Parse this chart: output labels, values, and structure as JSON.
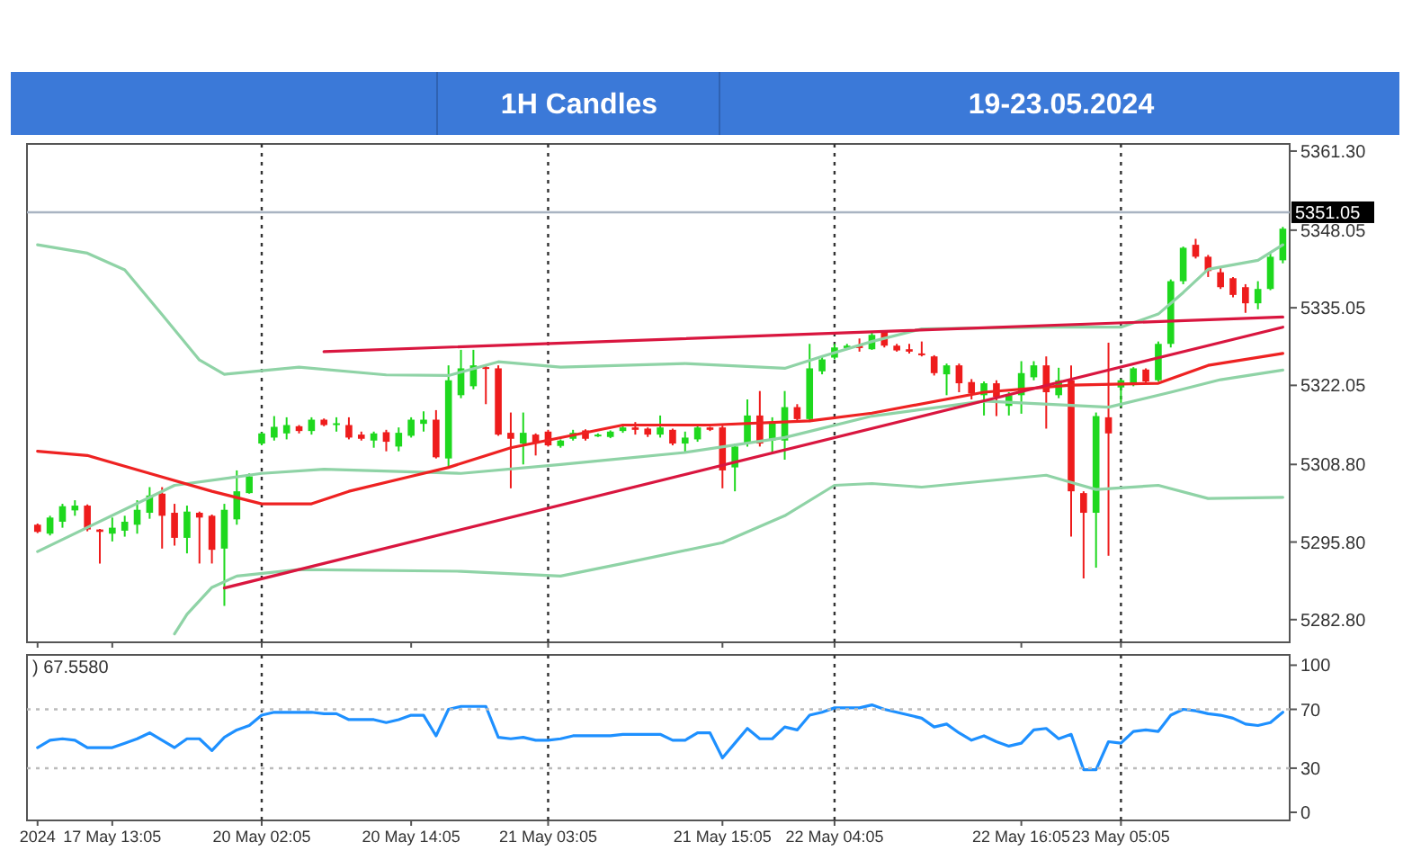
{
  "chart_data": [
    {
      "type": "candlestick",
      "title": "1H Candles",
      "subtitle": "19-23.05.2024",
      "tick_labels": "y",
      "ylim": [
        5279,
        5362.5
      ],
      "yticks": [
        {
          "value": 5282.8,
          "label": "5282.80"
        },
        {
          "value": 5295.8,
          "label": "5295.80"
        },
        {
          "value": 5308.8,
          "label": "5308.80"
        },
        {
          "value": 5322.05,
          "label": "5322.05"
        },
        {
          "value": 5335.05,
          "label": "5335.05"
        },
        {
          "value": 5348.05,
          "label": "5348.05"
        },
        {
          "value": 5361.3,
          "label": "5361.30"
        }
      ],
      "categories": [
        "2024",
        null,
        null,
        null,
        null,
        null,
        "17 May 13:05",
        null,
        null,
        null,
        null,
        null,
        null,
        null,
        null,
        null,
        null,
        null,
        "20 May 02:05",
        null,
        null,
        null,
        null,
        null,
        null,
        null,
        null,
        null,
        null,
        null,
        "20 May 14:05",
        null,
        null,
        null,
        null,
        null,
        null,
        null,
        null,
        null,
        null,
        "21 May 03:05",
        null,
        null,
        null,
        null,
        null,
        null,
        null,
        null,
        null,
        null,
        null,
        null,
        null,
        "21 May 15:05",
        null,
        null,
        null,
        null,
        null,
        null,
        null,
        null,
        "22 May 04:05",
        null,
        null,
        null,
        null,
        null,
        null,
        null,
        null,
        null,
        null,
        null,
        null,
        null,
        null,
        "22 May 16:05",
        null,
        null,
        null,
        null,
        null,
        null,
        null,
        "23 May 05:05",
        null,
        null,
        null,
        null,
        null,
        null,
        null,
        null,
        null,
        null,
        null,
        null,
        null
      ],
      "ohlc": [
        [
          5298.7,
          5298.9,
          5297.3,
          5297.5
        ],
        [
          5297.2,
          5300.2,
          5296.9,
          5299.9
        ],
        [
          5299.2,
          5302.2,
          5298.2,
          5301.8
        ],
        [
          5301.1,
          5302.8,
          5300.2,
          5301.9
        ],
        [
          5301.9,
          5302.1,
          5297.6,
          5297.9
        ],
        [
          5297.9,
          5298.0,
          5292.2,
          5297.5
        ],
        [
          5297.2,
          5299.9,
          5295.9,
          5298.2
        ],
        [
          5297.7,
          5300.2,
          5296.7,
          5299.2
        ],
        [
          5298.7,
          5302.8,
          5297.2,
          5301.2
        ],
        [
          5300.7,
          5305.0,
          5299.7,
          5303.6
        ],
        [
          5303.9,
          5305.0,
          5294.7,
          5300.2
        ],
        [
          5300.7,
          5302.2,
          5295.2,
          5296.5
        ],
        [
          5296.5,
          5301.9,
          5293.9,
          5300.9
        ],
        [
          5300.7,
          5300.9,
          5292.2,
          5299.9
        ],
        [
          5300.2,
          5300.4,
          5292.2,
          5294.5
        ],
        [
          5294.7,
          5302.2,
          5285.1,
          5301.2
        ],
        [
          5299.6,
          5307.8,
          5298.7,
          5304.3
        ],
        [
          5304.0,
          5307.3,
          5303.9,
          5306.8
        ],
        [
          5312.3,
          5314.2,
          5312.0,
          5314.0
        ],
        [
          5313.3,
          5316.9,
          5312.8,
          5315.1
        ],
        [
          5314.0,
          5316.7,
          5313.0,
          5315.4
        ],
        [
          5315.2,
          5315.4,
          5314.0,
          5314.4
        ],
        [
          5314.4,
          5316.7,
          5313.8,
          5316.3
        ],
        [
          5316.3,
          5316.5,
          5315.2,
          5315.4
        ],
        [
          5315.4,
          5316.7,
          5314.3,
          5315.7
        ],
        [
          5315.4,
          5316.7,
          5313.0,
          5313.3
        ],
        [
          5313.8,
          5314.3,
          5312.8,
          5313.1
        ],
        [
          5312.8,
          5314.3,
          5311.6,
          5314.0
        ],
        [
          5314.2,
          5314.6,
          5311.0,
          5312.6
        ],
        [
          5311.8,
          5315.0,
          5311.0,
          5314.1
        ],
        [
          5313.6,
          5316.7,
          5313.3,
          5316.3
        ],
        [
          5315.6,
          5317.7,
          5314.3,
          5316.3
        ],
        [
          5316.3,
          5317.9,
          5309.8,
          5310.0
        ],
        [
          5309.8,
          5325.4,
          5308.3,
          5322.9
        ],
        [
          5320.4,
          5328.0,
          5319.9,
          5324.9
        ],
        [
          5321.9,
          5328.0,
          5321.4,
          5325.4
        ],
        [
          5325.1,
          5325.4,
          5318.9,
          5324.9
        ],
        [
          5324.9,
          5325.4,
          5313.6,
          5313.8
        ],
        [
          5314.1,
          5317.5,
          5304.8,
          5313.1
        ],
        [
          5312.3,
          5317.5,
          5308.8,
          5314.1
        ],
        [
          5313.8,
          5314.0,
          5310.3,
          5312.3
        ],
        [
          5314.3,
          5314.6,
          5311.8,
          5312.0
        ],
        [
          5311.9,
          5313.0,
          5311.6,
          5312.8
        ],
        [
          5313.1,
          5314.6,
          5312.8,
          5314.1
        ],
        [
          5314.5,
          5314.7,
          5312.8,
          5313.1
        ],
        [
          5313.6,
          5314.0,
          5313.4,
          5313.8
        ],
        [
          5313.4,
          5314.5,
          5313.2,
          5314.3
        ],
        [
          5314.4,
          5315.6,
          5314.1,
          5315.0
        ],
        [
          5315.0,
          5315.9,
          5313.8,
          5314.6
        ],
        [
          5314.8,
          5315.0,
          5313.4,
          5313.8
        ],
        [
          5313.8,
          5317.0,
          5313.3,
          5315.0
        ],
        [
          5314.6,
          5314.8,
          5312.0,
          5312.3
        ],
        [
          5312.3,
          5314.3,
          5310.8,
          5313.3
        ],
        [
          5313.0,
          5315.3,
          5312.6,
          5315.0
        ],
        [
          5315.0,
          5315.1,
          5314.4,
          5314.6
        ],
        [
          5315.0,
          5315.3,
          5304.8,
          5307.8
        ],
        [
          5308.3,
          5312.3,
          5304.3,
          5311.8
        ],
        [
          5312.3,
          5319.7,
          5311.8,
          5317.0
        ],
        [
          5317.0,
          5321.1,
          5311.8,
          5312.3
        ],
        [
          5312.8,
          5316.7,
          5310.8,
          5315.9
        ],
        [
          5312.8,
          5321.1,
          5309.6,
          5318.4
        ],
        [
          5318.4,
          5318.9,
          5315.9,
          5316.4
        ],
        [
          5316.4,
          5329.0,
          5315.9,
          5324.9
        ],
        [
          5324.4,
          5326.9,
          5323.9,
          5326.4
        ],
        [
          5326.7,
          5329.0,
          5326.4,
          5328.4
        ],
        [
          5328.3,
          5329.0,
          5328.0,
          5328.7
        ],
        [
          5328.7,
          5329.9,
          5327.7,
          5328.3
        ],
        [
          5328.1,
          5331.0,
          5328.0,
          5330.5
        ],
        [
          5331.0,
          5331.2,
          5328.4,
          5328.7
        ],
        [
          5328.7,
          5329.0,
          5327.7,
          5327.9
        ],
        [
          5328.1,
          5329.0,
          5327.4,
          5327.7
        ],
        [
          5327.4,
          5329.4,
          5326.9,
          5327.1
        ],
        [
          5326.9,
          5327.1,
          5323.7,
          5324.1
        ],
        [
          5323.9,
          5325.7,
          5320.4,
          5325.4
        ],
        [
          5325.4,
          5325.7,
          5320.9,
          5322.4
        ],
        [
          5322.6,
          5323.1,
          5319.7,
          5320.7
        ],
        [
          5320.4,
          5322.7,
          5317.0,
          5322.4
        ],
        [
          5322.4,
          5322.9,
          5316.9,
          5320.1
        ],
        [
          5318.6,
          5320.9,
          5317.0,
          5320.4
        ],
        [
          5320.4,
          5326.1,
          5317.3,
          5324.1
        ],
        [
          5323.4,
          5326.1,
          5322.9,
          5325.4
        ],
        [
          5325.4,
          5326.9,
          5314.8,
          5320.9
        ],
        [
          5320.4,
          5325.0,
          5319.9,
          5322.9
        ],
        [
          5322.9,
          5325.4,
          5296.7,
          5304.3
        ],
        [
          5304.0,
          5304.3,
          5289.7,
          5300.7
        ],
        [
          5300.7,
          5317.5,
          5291.5,
          5316.9
        ],
        [
          5316.7,
          5329.2,
          5293.5,
          5314.0
        ],
        [
          5321.7,
          5323.1,
          5318.4,
          5322.9
        ],
        [
          5322.1,
          5325.1,
          5321.9,
          5324.9
        ],
        [
          5324.7,
          5324.9,
          5322.5,
          5322.7
        ],
        [
          5322.9,
          5329.4,
          5322.7,
          5329.0
        ],
        [
          5329.0,
          5339.8,
          5328.4,
          5339.5
        ],
        [
          5339.5,
          5345.3,
          5339.0,
          5345.1
        ],
        [
          5345.6,
          5346.6,
          5343.3,
          5343.6
        ],
        [
          5343.6,
          5343.9,
          5340.2,
          5341.2
        ],
        [
          5341.0,
          5342.0,
          5338.2,
          5338.5
        ],
        [
          5340.0,
          5340.2,
          5336.8,
          5337.2
        ],
        [
          5338.5,
          5339.0,
          5334.2,
          5335.8
        ],
        [
          5335.8,
          5339.5,
          5334.8,
          5338.2
        ],
        [
          5338.2,
          5344.1,
          5338.0,
          5343.6
        ],
        [
          5343.0,
          5348.6,
          5342.5,
          5348.3
        ]
      ],
      "colors": [
        "#ee1c1c",
        "#1ed81e",
        "#1ed81e",
        "#1ed81e",
        "#ee1c1c",
        "#ee1c1c",
        "#1ed81e",
        "#1ed81e",
        "#1ed81e",
        "#1ed81e",
        "#ee1c1c",
        "#ee1c1c",
        "#1ed81e",
        "#ee1c1c",
        "#ee1c1c",
        "#1ed81e",
        "#1ed81e",
        "#1ed81e",
        "#1ed81e",
        "#1ed81e",
        "#1ed81e",
        "#ee1c1c",
        "#1ed81e",
        "#ee1c1c",
        "#1ed81e",
        "#ee1c1c",
        "#ee1c1c",
        "#1ed81e",
        "#ee1c1c",
        "#1ed81e",
        "#1ed81e",
        "#1ed81e",
        "#ee1c1c",
        "#1ed81e",
        "#1ed81e",
        "#1ed81e",
        "#ee1c1c",
        "#ee1c1c",
        "#ee1c1c",
        "#1ed81e",
        "#ee1c1c",
        "#ee1c1c",
        "#1ed81e",
        "#1ed81e",
        "#ee1c1c",
        "#1ed81e",
        "#1ed81e",
        "#1ed81e",
        "#ee1c1c",
        "#ee1c1c",
        "#1ed81e",
        "#ee1c1c",
        "#1ed81e",
        "#1ed81e",
        "#ee1c1c",
        "#ee1c1c",
        "#1ed81e",
        "#1ed81e",
        "#ee1c1c",
        "#1ed81e",
        "#1ed81e",
        "#ee1c1c",
        "#1ed81e",
        "#1ed81e",
        "#1ed81e",
        "#1ed81e",
        "#ee1c1c",
        "#1ed81e",
        "#ee1c1c",
        "#ee1c1c",
        "#ee1c1c",
        "#ee1c1c",
        "#ee1c1c",
        "#1ed81e",
        "#ee1c1c",
        "#ee1c1c",
        "#1ed81e",
        "#ee1c1c",
        "#1ed81e",
        "#1ed81e",
        "#1ed81e",
        "#ee1c1c",
        "#1ed81e",
        "#ee1c1c",
        "#ee1c1c",
        "#1ed81e",
        "#ee1c1c",
        "#1ed81e",
        "#1ed81e",
        "#ee1c1c",
        "#1ed81e",
        "#1ed81e",
        "#1ed81e",
        "#ee1c1c",
        "#ee1c1c",
        "#ee1c1c",
        "#ee1c1c",
        "#ee1c1c",
        "#1ed81e",
        "#1ed81e",
        "#1ed81e"
      ],
      "series": [
        {
          "type": "line",
          "color": "#8fd3a6",
          "values": [
            5345.6,
            null,
            null,
            null,
            5344.2,
            null,
            null,
            5341.4,
            null,
            null,
            5333.9,
            null,
            null,
            5326.3,
            null,
            5323.9,
            null,
            null,
            null,
            null,
            null,
            5325.1,
            null,
            null,
            null,
            null,
            null,
            null,
            5323.8,
            null,
            null,
            null,
            null,
            5323.7,
            null,
            null,
            null,
            5326.0,
            null,
            null,
            null,
            null,
            5325.1,
            null,
            null,
            null,
            null,
            null,
            null,
            null,
            null,
            null,
            5325.7,
            null,
            null,
            null,
            null,
            null,
            null,
            null,
            5324.9,
            null,
            null,
            5326.9,
            null,
            null,
            null,
            5329.4,
            null,
            null,
            null,
            5331.5,
            null,
            null,
            null,
            null,
            null,
            null,
            null,
            null,
            null,
            5331.8,
            null,
            null,
            null,
            null,
            null,
            5331.8,
            null,
            null,
            5334.0,
            null,
            5337.6,
            null,
            5341.5,
            null,
            null,
            null,
            5343.0,
            null,
            5345.6
          ]
        },
        {
          "type": "line",
          "color": "#8fd3a6",
          "values": [
            5294.2,
            null,
            null,
            null,
            null,
            null,
            null,
            null,
            null,
            null,
            null,
            5305.3,
            null,
            null,
            null,
            null,
            null,
            null,
            5307.3,
            null,
            null,
            null,
            null,
            5308.0,
            null,
            null,
            null,
            null,
            null,
            null,
            null,
            null,
            null,
            null,
            5307.3,
            null,
            null,
            null,
            null,
            null,
            null,
            null,
            5308.8,
            null,
            null,
            null,
            null,
            null,
            null,
            null,
            null,
            null,
            5310.8,
            null,
            null,
            null,
            null,
            null,
            null,
            null,
            5313.3,
            null,
            null,
            null,
            null,
            null,
            null,
            5316.9,
            null,
            null,
            null,
            null,
            null,
            null,
            null,
            null,
            5319.4,
            null,
            null,
            null,
            null,
            null,
            null,
            null,
            null,
            null,
            5318.4,
            null,
            null,
            null,
            null,
            5320.9,
            null,
            null,
            null,
            5323.0,
            null,
            null,
            null,
            null,
            5324.6
          ]
        },
        {
          "type": "line",
          "color": "#8fd3a6",
          "values": [
            null,
            null,
            null,
            null,
            null,
            null,
            null,
            null,
            null,
            null,
            null,
            5280.4,
            5283.7,
            null,
            5288.2,
            null,
            5290.1,
            null,
            null,
            null,
            null,
            5291.2,
            null,
            null,
            null,
            null,
            null,
            null,
            null,
            null,
            null,
            null,
            null,
            null,
            5290.9,
            null,
            null,
            null,
            null,
            null,
            null,
            null,
            5290.1,
            null,
            null,
            null,
            null,
            5292.2,
            null,
            null,
            null,
            null,
            null,
            null,
            null,
            5295.7,
            null,
            null,
            null,
            null,
            5300.2,
            null,
            null,
            null,
            5305.3,
            null,
            null,
            5305.6,
            null,
            null,
            null,
            5305.0,
            null,
            null,
            null,
            null,
            null,
            null,
            null,
            null,
            null,
            5307.0,
            null,
            5305.8,
            null,
            5304.6,
            null,
            null,
            null,
            null,
            5305.3,
            null,
            null,
            null,
            5303.1,
            null,
            null,
            null,
            null,
            null,
            5303.3
          ]
        },
        {
          "type": "line",
          "color": "#ee2222",
          "values": [
            5311.0,
            null,
            null,
            null,
            5310.3,
            null,
            null,
            null,
            null,
            5307.3,
            null,
            null,
            null,
            null,
            5304.3,
            null,
            null,
            null,
            5302.2,
            null,
            null,
            null,
            5302.2,
            null,
            null,
            5304.3,
            null,
            null,
            null,
            null,
            5306.8,
            null,
            null,
            5308.3,
            null,
            null,
            null,
            null,
            5311.6,
            null,
            null,
            null,
            null,
            null,
            null,
            null,
            null,
            5315.4,
            null,
            null,
            null,
            null,
            null,
            null,
            5315.4,
            null,
            null,
            null,
            null,
            null,
            null,
            null,
            5316.1,
            null,
            null,
            null,
            null,
            5317.4,
            null,
            null,
            null,
            null,
            null,
            null,
            null,
            null,
            5320.9,
            null,
            null,
            null,
            null,
            null,
            null,
            5322.1,
            null,
            null,
            null,
            null,
            null,
            null,
            5322.4,
            null,
            null,
            null,
            5325.4,
            null,
            null,
            null,
            null,
            null,
            5327.4
          ]
        },
        {
          "type": "line",
          "color": "#d9163f",
          "values": [
            null,
            null,
            null,
            null,
            null,
            null,
            null,
            null,
            null,
            null,
            null,
            null,
            null,
            null,
            null,
            null,
            null,
            null,
            null,
            null,
            null,
            null,
            null,
            5327.7,
            null,
            null,
            null,
            null,
            null,
            null,
            null,
            null,
            null,
            null,
            null,
            null,
            null,
            null,
            null,
            null,
            null,
            null,
            null,
            null,
            null,
            null,
            null,
            null,
            null,
            null,
            null,
            null,
            null,
            null,
            null,
            null,
            null,
            null,
            null,
            null,
            null,
            null,
            null,
            null,
            null,
            null,
            null,
            null,
            null,
            null,
            null,
            null,
            null,
            null,
            null,
            null,
            null,
            null,
            null,
            null,
            null,
            null,
            null,
            null,
            null,
            null,
            null,
            null,
            null,
            null,
            null,
            null,
            null,
            null,
            null,
            null,
            null,
            null,
            null,
            null,
            5333.5
          ]
        },
        {
          "type": "line",
          "color": "#d9163f",
          "values": [
            null,
            null,
            null,
            null,
            null,
            null,
            null,
            null,
            null,
            null,
            null,
            null,
            null,
            null,
            null,
            5288.1,
            null,
            null,
            null,
            null,
            null,
            null,
            null,
            null,
            null,
            null,
            null,
            null,
            null,
            null,
            null,
            null,
            null,
            null,
            null,
            null,
            null,
            null,
            null,
            null,
            null,
            null,
            null,
            null,
            null,
            null,
            null,
            null,
            null,
            null,
            null,
            null,
            null,
            null,
            null,
            null,
            null,
            null,
            null,
            null,
            null,
            null,
            null,
            null,
            null,
            null,
            null,
            null,
            null,
            null,
            null,
            null,
            null,
            null,
            null,
            null,
            null,
            null,
            null,
            null,
            null,
            null,
            null,
            null,
            null,
            null,
            null,
            null,
            null,
            null,
            null,
            null,
            null,
            null,
            null,
            null,
            null,
            null,
            null,
            null,
            5331.8
          ]
        }
      ],
      "ref_lines": [
        {
          "axis": "y",
          "value": 5351.05,
          "label": "5351.05",
          "color": "#a9b4c2",
          "line_style": "solid"
        },
        {
          "axis": "x",
          "value": "20 May 02:05",
          "color": "#333333",
          "line_style": "dotted"
        },
        {
          "axis": "x",
          "value": "21 May 03:05",
          "color": "#333333",
          "line_style": "dotted"
        },
        {
          "axis": "x",
          "value": "22 May 04:05",
          "color": "#333333",
          "line_style": "dotted"
        },
        {
          "axis": "x",
          "value": "23 May 05:05",
          "color": "#333333",
          "line_style": "dotted"
        }
      ]
    },
    {
      "type": "line",
      "color": "#1e90ff",
      "annotations": [
        ") 67.5580"
      ],
      "ylim": [
        -5.5,
        107
      ],
      "yticks": [
        0,
        30,
        70,
        100
      ],
      "categories": [
        "2024",
        null,
        null,
        null,
        null,
        null,
        "17 May 13:05",
        null,
        null,
        null,
        null,
        null,
        null,
        null,
        null,
        null,
        null,
        null,
        "20 May 02:05",
        null,
        null,
        null,
        null,
        null,
        null,
        null,
        null,
        null,
        null,
        null,
        "20 May 14:05",
        null,
        null,
        null,
        null,
        null,
        null,
        null,
        null,
        null,
        null,
        "21 May 03:05",
        null,
        null,
        null,
        null,
        null,
        null,
        null,
        null,
        null,
        null,
        null,
        null,
        null,
        "21 May 15:05",
        null,
        null,
        null,
        null,
        null,
        null,
        null,
        null,
        "22 May 04:05",
        null,
        null,
        null,
        null,
        null,
        null,
        null,
        null,
        null,
        null,
        null,
        null,
        null,
        null,
        "22 May 16:05",
        null,
        null,
        null,
        null,
        null,
        null,
        null,
        "23 May 05:05",
        null,
        null,
        null,
        null,
        null,
        null,
        null,
        null,
        null,
        null,
        null,
        null,
        null
      ],
      "values": [
        44,
        49,
        50,
        49,
        44,
        44,
        44,
        47,
        50,
        54,
        49,
        44,
        50,
        50,
        42,
        51,
        56,
        59,
        66,
        68,
        68,
        68,
        68,
        67,
        67,
        63,
        63,
        63,
        61,
        63,
        66,
        66,
        52,
        70,
        72,
        72,
        72,
        51,
        50,
        51,
        49,
        49,
        50,
        52,
        52,
        52,
        52,
        53,
        53,
        53,
        53,
        49,
        49,
        54,
        54,
        37,
        47,
        57,
        50,
        50,
        58,
        56,
        66,
        68,
        71,
        71,
        71,
        73,
        70,
        68,
        66,
        64,
        58,
        60,
        54,
        49,
        52,
        48,
        45,
        47,
        56,
        57,
        50,
        53,
        29,
        29,
        48,
        47,
        55,
        56,
        55,
        66,
        70,
        69,
        67,
        66,
        64,
        60,
        59,
        61,
        68
      ],
      "ref_lines": [
        {
          "axis": "y",
          "value": 70,
          "color": "#bbbbbb",
          "line_style": "dotted"
        },
        {
          "axis": "y",
          "value": 30,
          "color": "#bbbbbb",
          "line_style": "dotted"
        },
        {
          "axis": "x",
          "value": "20 May 02:05",
          "color": "#333333",
          "line_style": "dotted"
        },
        {
          "axis": "x",
          "value": "21 May 03:05",
          "color": "#333333",
          "line_style": "dotted"
        },
        {
          "axis": "x",
          "value": "22 May 04:05",
          "color": "#333333",
          "line_style": "dotted"
        },
        {
          "axis": "x",
          "value": "23 May 05:05",
          "color": "#333333",
          "line_style": "dotted"
        }
      ]
    }
  ]
}
